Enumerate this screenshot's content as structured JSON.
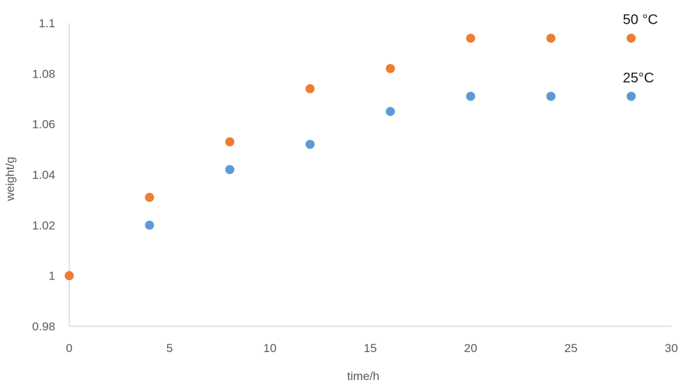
{
  "chart_data": {
    "type": "scatter",
    "title": "",
    "xlabel": "time/h",
    "ylabel": "weight/g",
    "xlim": [
      0,
      30
    ],
    "ylim": [
      0.98,
      1.1
    ],
    "x_ticks": [
      0,
      5,
      10,
      15,
      20,
      25,
      30
    ],
    "y_ticks": [
      "0.98",
      "1",
      "1.02",
      "1.04",
      "1.06",
      "1.08",
      "1.1"
    ],
    "grid": false,
    "series": [
      {
        "name": "25°C",
        "color": "#5B9BD5",
        "x": [
          0,
          4,
          8,
          12,
          16,
          20,
          24,
          28
        ],
        "y": [
          1.0,
          1.02,
          1.042,
          1.052,
          1.065,
          1.071,
          1.071,
          1.071
        ]
      },
      {
        "name": "50 °C",
        "color": "#ED7D31",
        "x": [
          0,
          4,
          8,
          12,
          16,
          20,
          24,
          28
        ],
        "y": [
          1.0,
          1.031,
          1.053,
          1.074,
          1.082,
          1.094,
          1.094,
          1.094
        ]
      }
    ]
  }
}
